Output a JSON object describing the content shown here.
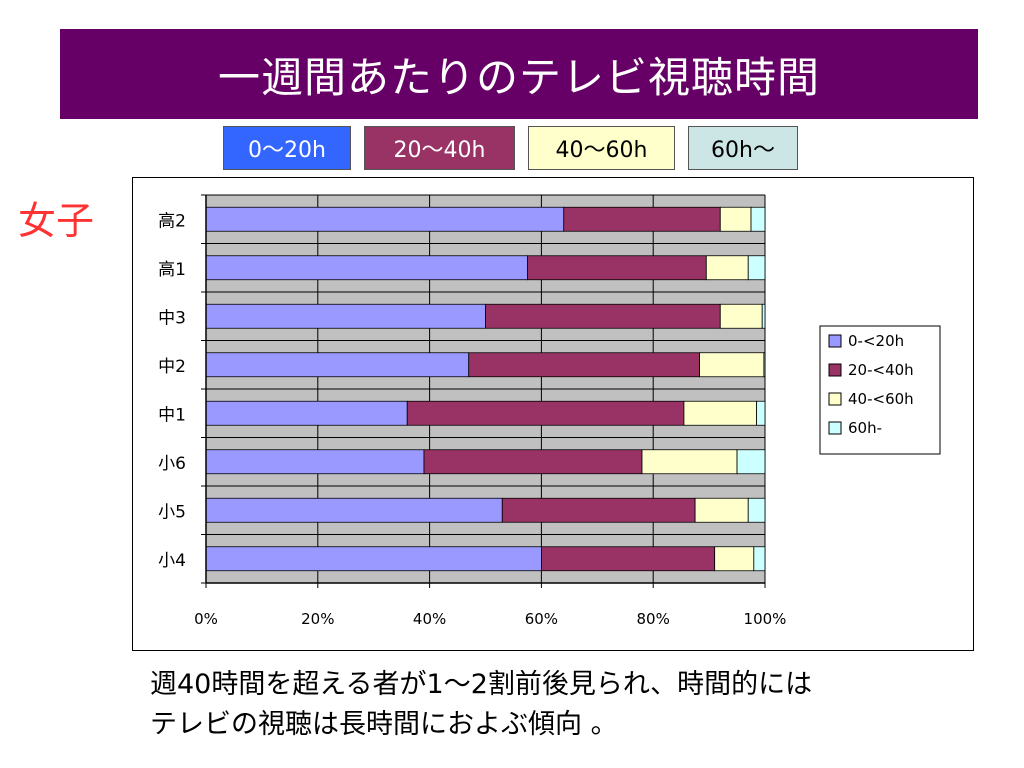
{
  "title": "一週間あたりのテレビ視聴時間",
  "legend_boxes": [
    {
      "label": "0～20h",
      "bg": "#3366ff",
      "color": "#ffffff"
    },
    {
      "label": "20～40h",
      "bg": "#993366",
      "color": "#ffffff"
    },
    {
      "label": "40～60h",
      "bg": "#ffffcc",
      "color": "#000000"
    },
    {
      "label": "60h～",
      "bg": "#cce6e6",
      "color": "#000000"
    }
  ],
  "side_label": "女子",
  "caption": {
    "line1": "週40時間を超える者が1～2割前後見られ、時間的には",
    "line2": "テレビの視聴は長時間におよぶ傾向 。"
  },
  "colors": {
    "title_bg": "#660066",
    "plot_bg": "#c0c0c0",
    "side_label": "#ff3333"
  },
  "chart_data": {
    "type": "bar",
    "orientation": "horizontal",
    "stacked": "percent",
    "categories": [
      "高2",
      "高1",
      "中3",
      "中2",
      "中1",
      "小6",
      "小5",
      "小4"
    ],
    "series": [
      {
        "name": "0-<20h",
        "color": "#9999ff",
        "values": [
          64,
          57.5,
          50,
          47,
          36,
          39,
          53,
          60
        ]
      },
      {
        "name": "20-<40h",
        "color": "#993366",
        "values": [
          28,
          32,
          42,
          41.3,
          49.5,
          39,
          34.5,
          31
        ]
      },
      {
        "name": "40-<60h",
        "color": "#ffffcc",
        "values": [
          5.5,
          7.5,
          7.5,
          11.5,
          13,
          17,
          9.5,
          7
        ]
      },
      {
        "name": "60h-",
        "color": "#ccffff",
        "values": [
          2.5,
          3,
          0.5,
          0.2,
          1.5,
          5,
          3,
          2
        ]
      }
    ],
    "xticks": [
      "0%",
      "20%",
      "40%",
      "60%",
      "80%",
      "100%"
    ],
    "xlim": [
      0,
      100
    ],
    "grid": true,
    "legend": "right"
  }
}
